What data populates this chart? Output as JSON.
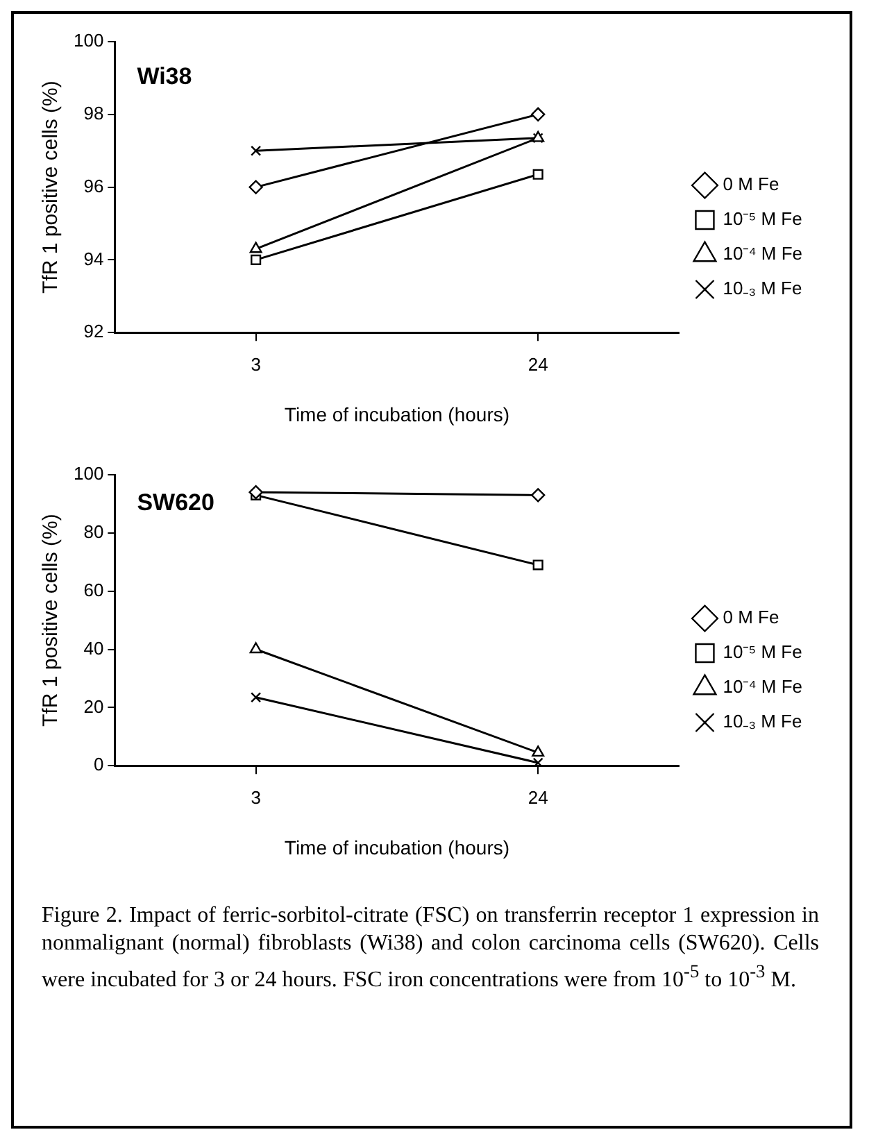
{
  "chart_data": [
    {
      "type": "line",
      "title": "Wi38",
      "xlabel": "Time of incubation (hours)",
      "ylabel": "TfR 1 positive cells (%)",
      "categories": [
        "3",
        "24"
      ],
      "ylim": [
        92,
        100
      ],
      "yticks": [
        92,
        94,
        96,
        98,
        100
      ],
      "grid": false,
      "legend": "right",
      "series": [
        {
          "name": "0 M Fe",
          "color": "#000000",
          "marker": "diamond",
          "values": [
            96,
            98
          ]
        },
        {
          "name": "10⁻⁵ M Fe",
          "color": "#000000",
          "marker": "square",
          "values": [
            94,
            96.35
          ]
        },
        {
          "name": "10⁻⁴ M Fe",
          "color": "#000000",
          "marker": "triangle",
          "values": [
            94.3,
            97.35
          ]
        },
        {
          "name": "10₋₃ M Fe",
          "color": "#000000",
          "marker": "cross",
          "values": [
            97,
            97.35
          ]
        }
      ]
    },
    {
      "type": "line",
      "title": "SW620",
      "xlabel": "Time of incubation (hours)",
      "ylabel": "TfR 1 positive cells (%)",
      "categories": [
        "3",
        "24"
      ],
      "ylim": [
        0,
        100
      ],
      "yticks": [
        0,
        20,
        40,
        60,
        80,
        100
      ],
      "grid": false,
      "legend": "right",
      "series": [
        {
          "name": "0 M Fe",
          "color": "#000000",
          "marker": "diamond",
          "values": [
            94,
            93
          ]
        },
        {
          "name": "10⁻⁵ M Fe",
          "color": "#000000",
          "marker": "square",
          "values": [
            93,
            69
          ]
        },
        {
          "name": "10⁻⁴ M Fe",
          "color": "#000000",
          "marker": "triangle",
          "values": [
            40,
            4.5
          ]
        },
        {
          "name": "10₋₃ M Fe",
          "color": "#000000",
          "marker": "cross",
          "values": [
            23.5,
            1
          ]
        }
      ],
      "annotations": [
        "Figure 2.    Impact of ferric-sorbitol-citrate (FSC) on transferrin receptor 1 expression in nonmalignant (normal) fibroblasts (Wi38) and colon carcinoma cells (SW620). Cells were incubated for 3 or 24 hours. FSC iron concentrations were from 10$^{-5}$ to 10$^{-3}$ M."
      ]
    }
  ]
}
